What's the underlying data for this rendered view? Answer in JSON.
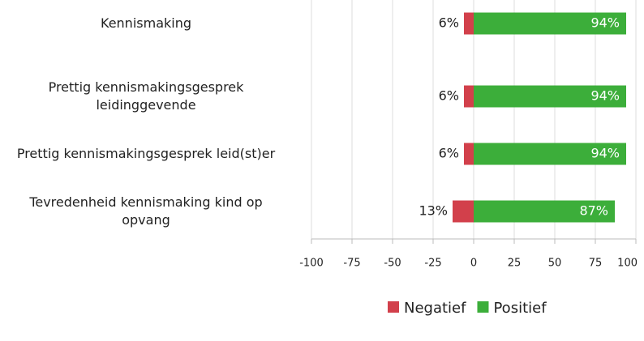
{
  "chart_data": {
    "type": "diverging-bar",
    "categories": [
      "Kennismaking",
      "Prettig kennismakingsgesprek leidinggevende",
      "Prettig kennismakingsgesprek leid(st)er",
      "Tevredenheid kennismaking kind op opvang"
    ],
    "series": [
      {
        "name": "Negatief",
        "color": "#d2404b",
        "values": [
          -6,
          -6,
          -6,
          -13
        ],
        "value_labels": [
          "6%",
          "6%",
          "6%",
          "13%"
        ]
      },
      {
        "name": "Positief",
        "color": "#3cae3a",
        "values": [
          94,
          94,
          94,
          87
        ],
        "value_labels": [
          "94%",
          "94%",
          "94%",
          "87%"
        ]
      }
    ],
    "xlim": [
      -100,
      100
    ],
    "xticks": [
      -100,
      -75,
      -50,
      -25,
      0,
      25,
      50,
      75,
      100
    ],
    "grid": true,
    "legend": "bottom"
  }
}
